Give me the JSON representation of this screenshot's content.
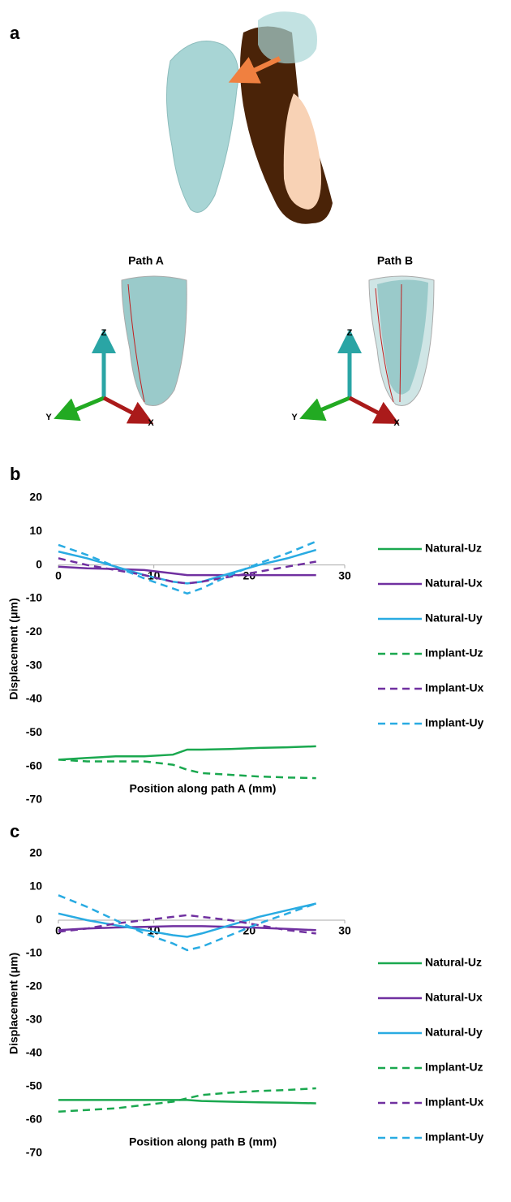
{
  "figure": {
    "label": "a",
    "views": [
      {
        "title": "Path A",
        "axes": [
          "Z",
          "Y",
          "X"
        ]
      },
      {
        "title": "Path B",
        "axes": [
          "Z",
          "Y",
          "X"
        ]
      }
    ]
  },
  "chart_data": [
    {
      "type": "line",
      "panel": "b",
      "x_label": "Position along path A (mm)",
      "y_label": "Displacement (μm)",
      "x": [
        0,
        3,
        6,
        9,
        12,
        13.5,
        15,
        18,
        21,
        24,
        27
      ],
      "xlim": [
        0,
        30
      ],
      "xticks": [
        0,
        10,
        20,
        30
      ],
      "ylim": [
        -70,
        20
      ],
      "yticks": [
        20,
        10,
        0,
        -10,
        -20,
        -30,
        -40,
        -50,
        -60,
        -70
      ],
      "legend": "right",
      "series": [
        {
          "name": "Natural-Uz",
          "color": "#1aa84f",
          "style": "solid",
          "values": [
            -58,
            -57.5,
            -57,
            -57,
            -56.5,
            -55,
            -55,
            -54.8,
            -54.5,
            -54.3,
            -54
          ]
        },
        {
          "name": "Natural-Ux",
          "color": "#7030a0",
          "style": "solid",
          "values": [
            -0.5,
            -1,
            -1.2,
            -1.5,
            -2.5,
            -3,
            -3,
            -3,
            -3,
            -3,
            -3
          ]
        },
        {
          "name": "Natural-Uy",
          "color": "#29abe2",
          "style": "solid",
          "values": [
            4,
            2,
            -0.5,
            -3,
            -5,
            -5.5,
            -5,
            -2.5,
            0,
            2,
            4.5
          ]
        },
        {
          "name": "Implant-Uz",
          "color": "#1aa84f",
          "style": "dashed",
          "values": [
            -58,
            -58.5,
            -58.5,
            -58.5,
            -59.5,
            -61,
            -62,
            -62.5,
            -63,
            -63.3,
            -63.5
          ]
        },
        {
          "name": "Implant-Ux",
          "color": "#7030a0",
          "style": "dashed",
          "values": [
            2,
            0,
            -1.5,
            -3,
            -5,
            -5.5,
            -5,
            -3.5,
            -2,
            -0.5,
            1
          ]
        },
        {
          "name": "Implant-Uy",
          "color": "#29abe2",
          "style": "dashed",
          "values": [
            6,
            3,
            -0.5,
            -4,
            -7,
            -8.5,
            -7,
            -3,
            0.5,
            3.5,
            7
          ]
        }
      ]
    },
    {
      "type": "line",
      "panel": "c",
      "x_label": "Position along path B (mm)",
      "y_label": "Displacement (μm)",
      "x": [
        0,
        3,
        6,
        9,
        12,
        13.5,
        15,
        18,
        21,
        24,
        27
      ],
      "xlim": [
        0,
        30
      ],
      "xticks": [
        0,
        10,
        20,
        30
      ],
      "ylim": [
        -70,
        20
      ],
      "yticks": [
        20,
        10,
        0,
        -10,
        -20,
        -30,
        -40,
        -50,
        -60,
        -70
      ],
      "legend": "right",
      "series": [
        {
          "name": "Natural-Uz",
          "color": "#1aa84f",
          "style": "solid",
          "values": [
            -54,
            -54,
            -54,
            -54,
            -54,
            -54,
            -54.3,
            -54.5,
            -54.7,
            -54.8,
            -55
          ]
        },
        {
          "name": "Natural-Ux",
          "color": "#7030a0",
          "style": "solid",
          "values": [
            -3,
            -2.5,
            -2.2,
            -2,
            -1.8,
            -1.8,
            -1.8,
            -2,
            -2.3,
            -2.6,
            -3
          ]
        },
        {
          "name": "Natural-Uy",
          "color": "#29abe2",
          "style": "solid",
          "values": [
            2,
            0,
            -1.5,
            -3,
            -4.5,
            -5,
            -4,
            -1.5,
            1,
            3,
            5
          ]
        },
        {
          "name": "Implant-Uz",
          "color": "#1aa84f",
          "style": "dashed",
          "values": [
            -57.5,
            -57,
            -56.5,
            -55.5,
            -54.5,
            -53.5,
            -52.5,
            -51.8,
            -51.3,
            -51,
            -50.5
          ]
        },
        {
          "name": "Implant-Ux",
          "color": "#7030a0",
          "style": "dashed",
          "values": [
            -3.5,
            -2.5,
            -1,
            0,
            1,
            1.5,
            1,
            0,
            -1.5,
            -3,
            -4
          ]
        },
        {
          "name": "Implant-Uy",
          "color": "#29abe2",
          "style": "dashed",
          "values": [
            7.5,
            4,
            0,
            -4,
            -7,
            -9,
            -8,
            -4.5,
            -1,
            2,
            5
          ]
        }
      ]
    }
  ]
}
